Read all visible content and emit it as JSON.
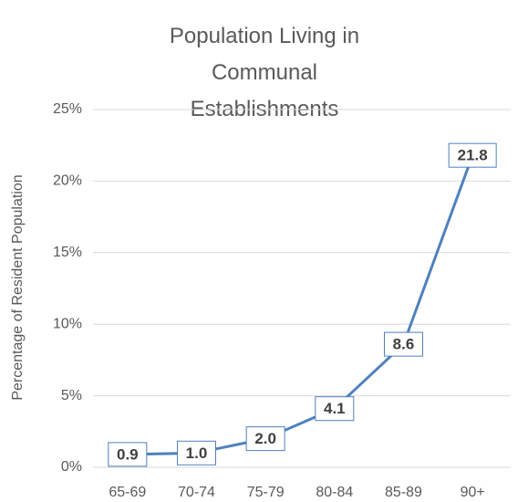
{
  "chart_data": {
    "type": "line",
    "title": "Population Living in Communal Establishments",
    "y_label": "Percentage of Resident Population",
    "categories": [
      "65-69",
      "70-74",
      "75-79",
      "80-84",
      "85-89",
      "90+"
    ],
    "values": [
      0.9,
      1.0,
      2.0,
      4.1,
      8.6,
      21.8
    ],
    "value_labels": [
      "0.9",
      "1.0",
      "2.0",
      "4.1",
      "8.6",
      "21.8"
    ],
    "color": "#4f81bd",
    "ylim": [
      0,
      25
    ],
    "yticks": [
      {
        "value": 0,
        "label": "0%"
      },
      {
        "value": 5,
        "label": "5%"
      },
      {
        "value": 10,
        "label": "10%"
      },
      {
        "value": 15,
        "label": "15%"
      },
      {
        "value": 20,
        "label": "20%"
      },
      {
        "value": 25,
        "label": "25%"
      }
    ],
    "grid": true
  }
}
